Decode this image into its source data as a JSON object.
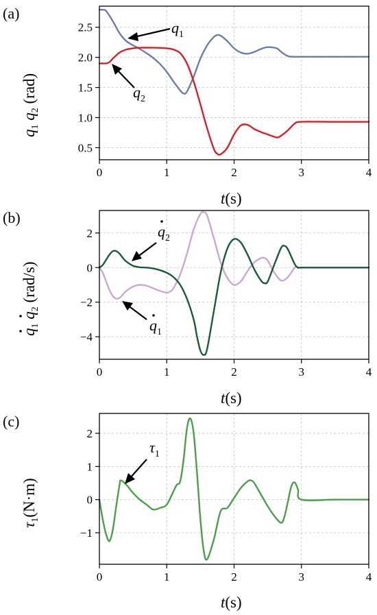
{
  "chart_data": [
    {
      "type": "line",
      "panel_label": "(a)",
      "xlabel_var": "t",
      "xlabel_unit": "(s)",
      "ylabel_parts": [
        "q",
        "1",
        " q",
        "2",
        " (rad)"
      ],
      "xlim": [
        0,
        4
      ],
      "ylim": [
        0.3,
        2.85
      ],
      "xticks": [
        0,
        1,
        2,
        3,
        4
      ],
      "yticks": [
        0.5,
        1.0,
        1.5,
        2.0,
        2.5
      ],
      "ytick_labels": [
        "0.5",
        "1.0",
        "1.5",
        "2.0",
        "2.5"
      ],
      "grid": true,
      "series": [
        {
          "color": "#6a7fa3",
          "x": [
            0,
            0.05,
            0.1,
            0.2,
            0.3,
            0.4,
            0.5,
            0.6,
            0.7,
            0.8,
            0.9,
            1.0,
            1.1,
            1.2,
            1.25,
            1.3,
            1.4,
            1.5,
            1.6,
            1.7,
            1.75,
            1.8,
            1.9,
            2.0,
            2.1,
            2.2,
            2.3,
            2.4,
            2.5,
            2.6,
            2.65,
            2.7,
            2.8,
            2.9,
            3.0,
            3.5,
            4.0
          ],
          "y": [
            2.79,
            2.79,
            2.77,
            2.6,
            2.4,
            2.27,
            2.2,
            2.14,
            2.07,
            1.99,
            1.89,
            1.76,
            1.6,
            1.45,
            1.4,
            1.43,
            1.68,
            1.98,
            2.2,
            2.34,
            2.37,
            2.36,
            2.27,
            2.15,
            2.08,
            2.06,
            2.09,
            2.14,
            2.17,
            2.16,
            2.14,
            2.09,
            2.02,
            2.01,
            2.01,
            2.01,
            2.01
          ]
        },
        {
          "color": "#d81f2a",
          "x": [
            0,
            0.1,
            0.15,
            0.2,
            0.3,
            0.4,
            0.5,
            0.6,
            0.8,
            1.0,
            1.1,
            1.2,
            1.3,
            1.4,
            1.5,
            1.6,
            1.7,
            1.75,
            1.8,
            1.9,
            2.0,
            2.1,
            2.2,
            2.3,
            2.4,
            2.5,
            2.6,
            2.65,
            2.7,
            2.8,
            2.9,
            3.0,
            3.5,
            4.0
          ],
          "y": [
            1.9,
            1.9,
            1.92,
            1.98,
            2.08,
            2.13,
            2.15,
            2.16,
            2.16,
            2.15,
            2.13,
            2.07,
            1.9,
            1.6,
            1.22,
            0.82,
            0.48,
            0.4,
            0.39,
            0.5,
            0.72,
            0.87,
            0.88,
            0.81,
            0.76,
            0.72,
            0.68,
            0.67,
            0.7,
            0.79,
            0.9,
            0.93,
            0.93,
            0.93
          ]
        }
      ],
      "annotations": [
        {
          "base": "q",
          "sub": "1",
          "dot": false
        },
        {
          "base": "q",
          "sub": "2",
          "dot": false
        }
      ]
    },
    {
      "type": "line",
      "panel_label": "(b)",
      "xlabel_var": "t",
      "xlabel_unit": "(s)",
      "ylabel_parts": [
        "q",
        "1",
        " q",
        "2",
        " (rad/s)"
      ],
      "ylabel_dots": true,
      "xlim": [
        0,
        4
      ],
      "ylim": [
        -5.3,
        3.3
      ],
      "xticks": [
        0,
        1,
        2,
        3,
        4
      ],
      "yticks": [
        -4,
        -2,
        0,
        2
      ],
      "ytick_labels": [
        "−4",
        "−2",
        "0",
        "2"
      ],
      "grid": true,
      "series": [
        {
          "color": "#c9a9d4",
          "x": [
            0,
            0.05,
            0.1,
            0.15,
            0.2,
            0.25,
            0.3,
            0.35,
            0.4,
            0.5,
            0.6,
            0.7,
            0.8,
            0.9,
            1.0,
            1.05,
            1.1,
            1.2,
            1.3,
            1.4,
            1.5,
            1.55,
            1.6,
            1.7,
            1.8,
            1.9,
            2.0,
            2.1,
            2.2,
            2.3,
            2.4,
            2.45,
            2.5,
            2.6,
            2.7,
            2.8,
            2.9,
            2.95,
            3.0,
            3.5,
            4.0
          ],
          "y": [
            0,
            -0.3,
            -0.8,
            -1.3,
            -1.65,
            -1.8,
            -1.75,
            -1.55,
            -1.35,
            -1.1,
            -1.0,
            -1.05,
            -1.2,
            -1.35,
            -1.45,
            -1.38,
            -1.2,
            -0.4,
            0.8,
            2.2,
            3.1,
            3.2,
            3.0,
            1.7,
            0.3,
            -0.6,
            -1.0,
            -0.8,
            -0.2,
            0.3,
            0.55,
            0.55,
            0.4,
            -0.3,
            -0.75,
            -0.55,
            0.0,
            0.0,
            0.0,
            0.0,
            0.0
          ]
        },
        {
          "color": "#1a5b34",
          "x": [
            0,
            0.05,
            0.1,
            0.15,
            0.2,
            0.25,
            0.3,
            0.35,
            0.4,
            0.5,
            0.6,
            0.7,
            0.8,
            0.9,
            1.0,
            1.1,
            1.2,
            1.3,
            1.4,
            1.45,
            1.5,
            1.55,
            1.6,
            1.7,
            1.8,
            1.9,
            2.0,
            2.1,
            2.2,
            2.3,
            2.4,
            2.45,
            2.5,
            2.6,
            2.7,
            2.75,
            2.8,
            2.9,
            2.95,
            3.0,
            3.5,
            4.0
          ],
          "y": [
            0,
            0.15,
            0.45,
            0.75,
            0.95,
            0.95,
            0.8,
            0.55,
            0.35,
            0.1,
            0.02,
            0.0,
            -0.05,
            -0.15,
            -0.3,
            -0.55,
            -1.0,
            -1.8,
            -3.0,
            -4.0,
            -4.8,
            -5.05,
            -4.7,
            -2.5,
            -0.3,
            1.1,
            1.65,
            1.45,
            0.75,
            -0.1,
            -0.75,
            -0.9,
            -0.8,
            0.2,
            1.15,
            1.25,
            1.05,
            0.2,
            0.0,
            0.0,
            0.0,
            0.0
          ]
        }
      ],
      "annotations": [
        {
          "base": "q",
          "sub": "2",
          "dot": true
        },
        {
          "base": "q",
          "sub": "1",
          "dot": true
        }
      ]
    },
    {
      "type": "line",
      "panel_label": "(c)",
      "xlabel_var": "t",
      "xlabel_unit": "(s)",
      "ylabel_parts": [
        "τ",
        "1",
        "",
        "",
        "(N·m)"
      ],
      "xlim": [
        0,
        4
      ],
      "ylim": [
        -1.95,
        2.6
      ],
      "xticks": [
        0,
        1,
        2,
        3,
        4
      ],
      "yticks": [
        -1,
        0,
        1,
        2
      ],
      "ytick_labels": [
        "−1",
        "0",
        "1",
        "2"
      ],
      "grid": true,
      "series": [
        {
          "color": "#4aa04a",
          "x": [
            0,
            0.05,
            0.1,
            0.15,
            0.2,
            0.25,
            0.3,
            0.32,
            0.4,
            0.5,
            0.6,
            0.7,
            0.8,
            0.9,
            1.0,
            1.1,
            1.15,
            1.2,
            1.25,
            1.3,
            1.35,
            1.4,
            1.45,
            1.5,
            1.55,
            1.6,
            1.7,
            1.8,
            1.9,
            2.0,
            2.1,
            2.2,
            2.25,
            2.3,
            2.4,
            2.5,
            2.6,
            2.7,
            2.75,
            2.8,
            2.85,
            2.9,
            2.95,
            3.0,
            3.5,
            4.0
          ],
          "y": [
            0,
            -0.6,
            -1.05,
            -1.25,
            -0.9,
            -0.2,
            0.45,
            0.58,
            0.45,
            0.2,
            0.0,
            -0.15,
            -0.3,
            -0.25,
            -0.15,
            0.25,
            0.45,
            0.55,
            1.2,
            2.15,
            2.45,
            2.0,
            0.8,
            -0.6,
            -1.55,
            -1.8,
            -1.2,
            -0.35,
            -0.25,
            0.05,
            0.35,
            0.55,
            0.58,
            0.5,
            0.15,
            -0.2,
            -0.5,
            -0.7,
            -0.5,
            -0.05,
            0.4,
            0.52,
            0.3,
            0.0,
            0.0,
            0.0
          ]
        }
      ],
      "annotations": [
        {
          "base": "τ",
          "sub": "1",
          "dot": false
        }
      ]
    }
  ]
}
